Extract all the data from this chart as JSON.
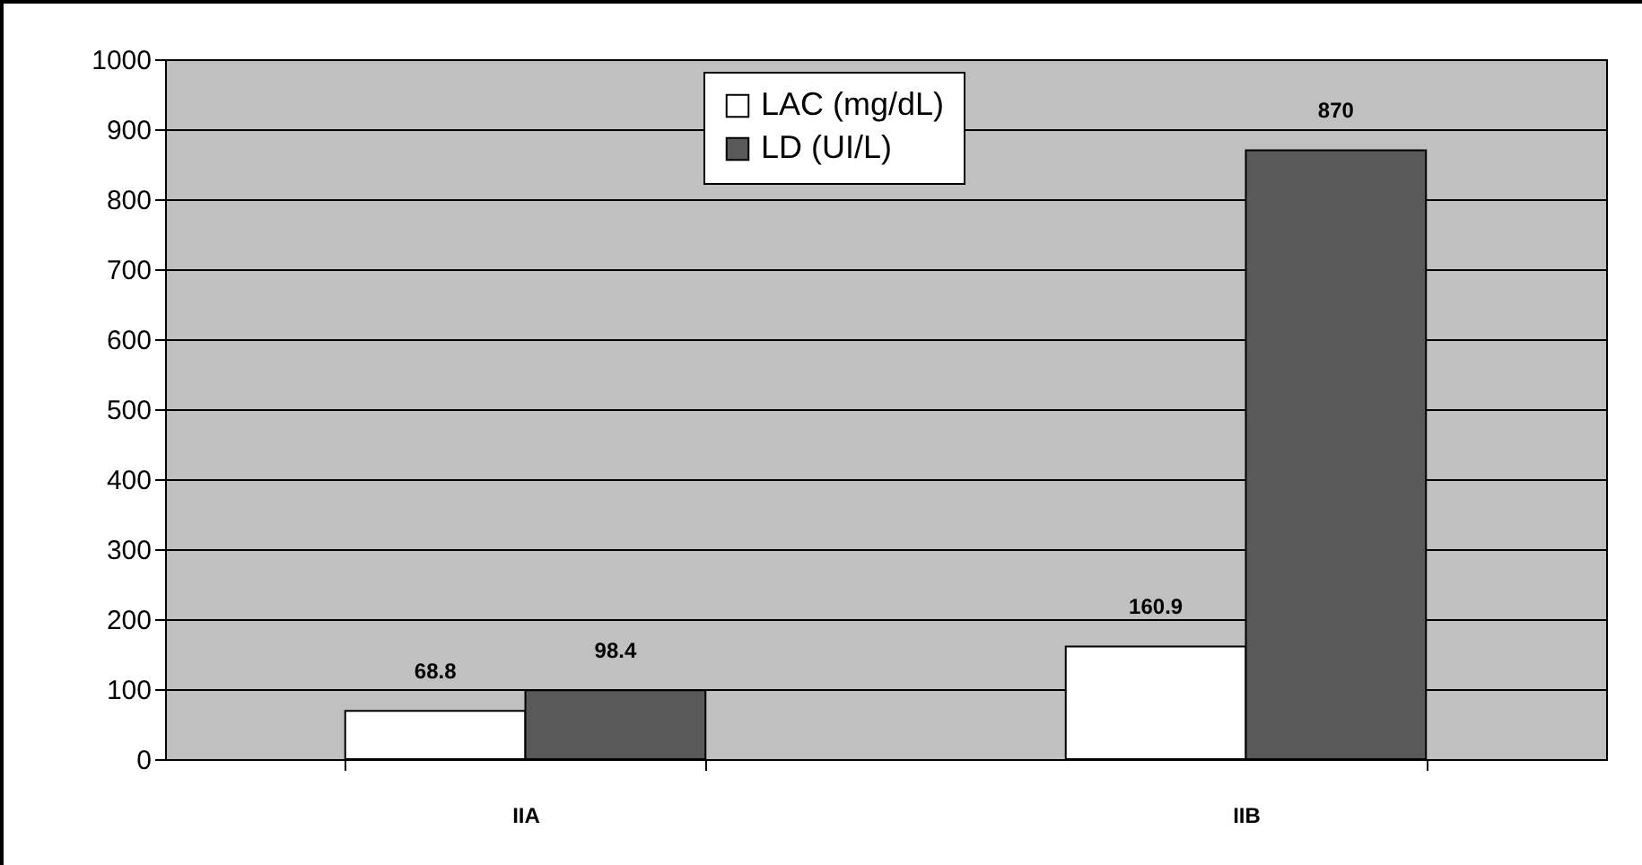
{
  "chart_data": {
    "type": "bar",
    "categories": [
      "IIA",
      "IIB"
    ],
    "series": [
      {
        "name": "LAC (mg/dL)",
        "color": "#ffffff",
        "values": [
          68.8,
          160.9
        ]
      },
      {
        "name": "LD (UI/L)",
        "color": "#595959",
        "values": [
          98.4,
          870
        ]
      }
    ],
    "ylim": [
      0,
      1000
    ],
    "yticks": [
      0,
      100,
      200,
      300,
      400,
      500,
      600,
      700,
      800,
      900,
      1000
    ],
    "grid": "y",
    "legend": "top",
    "data_labels": true
  }
}
